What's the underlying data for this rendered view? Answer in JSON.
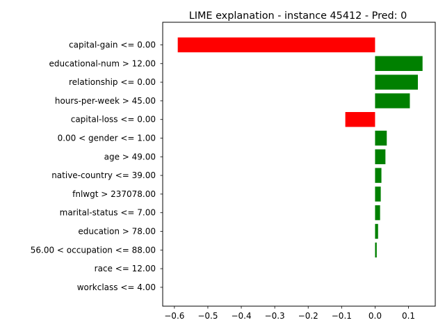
{
  "chart_data": {
    "type": "bar",
    "orientation": "horizontal",
    "title": "LIME explanation - instance 45412 - Pred: 0",
    "xlabel": "",
    "ylabel": "",
    "xlim": [
      -0.635,
      0.18
    ],
    "grid": false,
    "legend": "none",
    "x_ticks": [
      {
        "value": -0.6,
        "label": "−0.6"
      },
      {
        "value": -0.5,
        "label": "−0.5"
      },
      {
        "value": -0.4,
        "label": "−0.4"
      },
      {
        "value": -0.3,
        "label": "−0.3"
      },
      {
        "value": -0.2,
        "label": "−0.2"
      },
      {
        "value": -0.1,
        "label": "−0.1"
      },
      {
        "value": 0.0,
        "label": "0.0"
      },
      {
        "value": 0.1,
        "label": "0.1"
      }
    ],
    "categories": [
      "capital-gain <= 0.00",
      "educational-num > 12.00",
      "relationship <= 0.00",
      "hours-per-week > 45.00",
      "capital-loss <= 0.00",
      "0.00 < gender <= 1.00",
      "age > 49.00",
      "native-country <= 39.00",
      "fnlwgt > 237078.00",
      "marital-status <= 7.00",
      "education > 78.00",
      "56.00 < occupation <= 88.00",
      "race <= 12.00",
      "workclass <= 4.00"
    ],
    "values": [
      -0.59,
      0.142,
      0.128,
      0.104,
      -0.089,
      0.035,
      0.031,
      0.019,
      0.017,
      0.015,
      0.009,
      0.005,
      0.0,
      0.0
    ],
    "colors": {
      "positive": "#008000",
      "negative": "#ff0000"
    }
  }
}
